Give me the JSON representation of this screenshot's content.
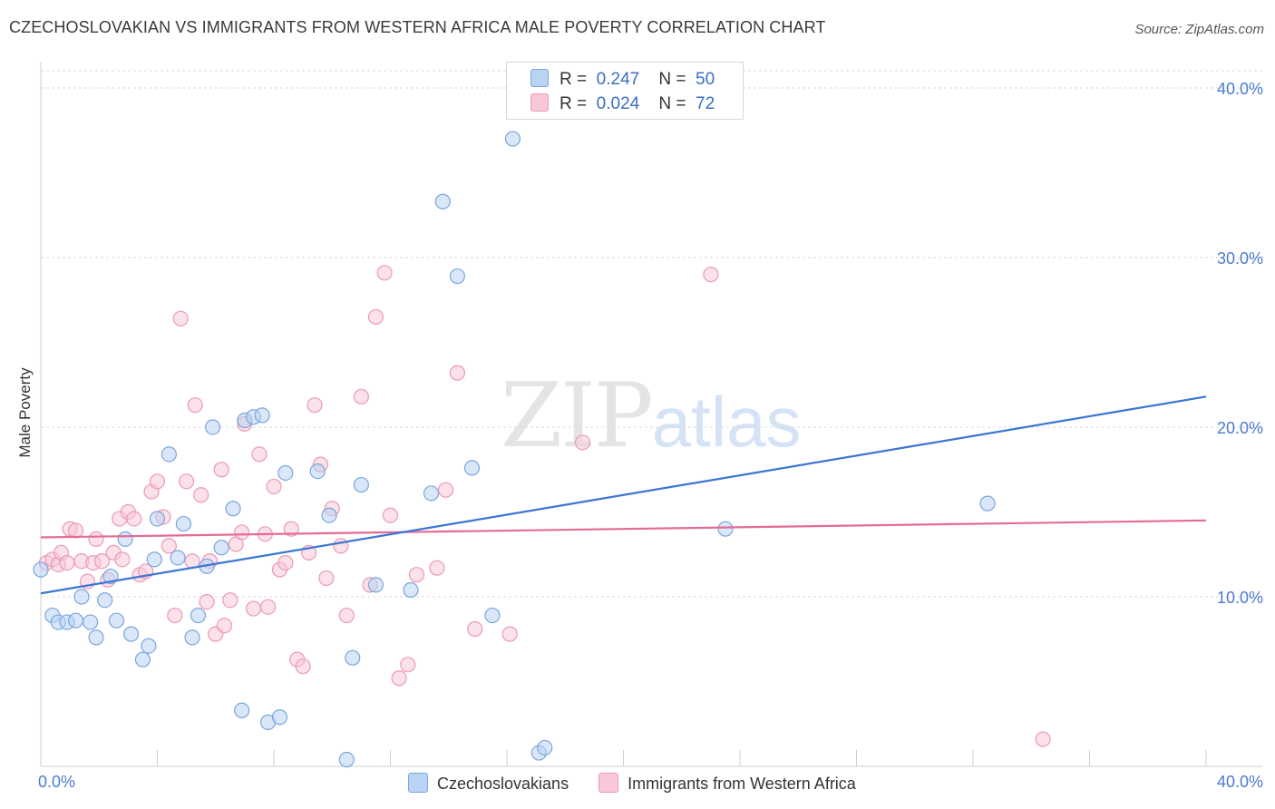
{
  "title": "CZECHOSLOVAKIAN VS IMMIGRANTS FROM WESTERN AFRICA MALE POVERTY CORRELATION CHART",
  "source": "Source: ZipAtlas.com",
  "watermark": {
    "zip": "ZIP",
    "atlas": "atlas"
  },
  "legend": {
    "rows": [
      {
        "r_label": "R =",
        "r_value": "0.247",
        "n_label": "N =",
        "n_value": "50"
      },
      {
        "r_label": "R =",
        "r_value": "0.024",
        "n_label": "N =",
        "n_value": "72"
      }
    ]
  },
  "colors": {
    "blue_fill": "#b9d3f3",
    "blue_stroke": "#7aa6de",
    "blue_line": "#3a76d2",
    "pink_fill": "#f8c8d7",
    "pink_stroke": "#eb9ab4",
    "pink_line": "#e36c95",
    "tick_text": "#4a7bd0",
    "grid": "#d9d9d9"
  },
  "chart_data": {
    "type": "scatter",
    "title": "CZECHOSLOVAKIAN VS IMMIGRANTS FROM WESTERN AFRICA MALE POVERTY CORRELATION CHART",
    "xlabel": "",
    "ylabel": "Male Poverty",
    "xlim": [
      0,
      40
    ],
    "ylim": [
      0,
      40.8
    ],
    "x_tick_labels": [
      "0.0%",
      "40.0%"
    ],
    "y_ticks": [
      10,
      20,
      30,
      40
    ],
    "y_tick_labels": [
      "10.0%",
      "20.0%",
      "30.0%",
      "40.0%"
    ],
    "grid": "horizontal dashed",
    "legend_position": "bottom",
    "series": [
      {
        "name": "Czechoslovakians",
        "color": "#b9d3f3",
        "trend": {
          "x": [
            0,
            40
          ],
          "y": [
            10.2,
            21.8
          ]
        },
        "points": [
          [
            0.0,
            11.6
          ],
          [
            0.4,
            8.9
          ],
          [
            0.6,
            8.5
          ],
          [
            0.9,
            8.5
          ],
          [
            1.2,
            8.6
          ],
          [
            1.4,
            10.0
          ],
          [
            1.7,
            8.5
          ],
          [
            1.9,
            7.6
          ],
          [
            2.2,
            9.8
          ],
          [
            2.4,
            11.2
          ],
          [
            2.6,
            8.6
          ],
          [
            2.9,
            13.4
          ],
          [
            3.1,
            7.8
          ],
          [
            3.5,
            6.3
          ],
          [
            3.7,
            7.1
          ],
          [
            3.9,
            12.2
          ],
          [
            4.0,
            14.6
          ],
          [
            4.4,
            18.4
          ],
          [
            4.7,
            12.3
          ],
          [
            4.9,
            14.3
          ],
          [
            5.2,
            7.6
          ],
          [
            5.4,
            8.9
          ],
          [
            5.7,
            11.8
          ],
          [
            5.9,
            20.0
          ],
          [
            6.2,
            12.9
          ],
          [
            6.6,
            15.2
          ],
          [
            6.9,
            3.3
          ],
          [
            7.0,
            20.4
          ],
          [
            7.3,
            20.6
          ],
          [
            7.6,
            20.7
          ],
          [
            7.8,
            2.6
          ],
          [
            8.2,
            2.9
          ],
          [
            8.4,
            17.3
          ],
          [
            9.5,
            17.4
          ],
          [
            9.9,
            14.8
          ],
          [
            10.5,
            0.4
          ],
          [
            10.7,
            6.4
          ],
          [
            11.0,
            16.6
          ],
          [
            11.5,
            10.7
          ],
          [
            12.7,
            10.4
          ],
          [
            13.4,
            16.1
          ],
          [
            13.8,
            33.3
          ],
          [
            14.3,
            28.9
          ],
          [
            14.8,
            17.6
          ],
          [
            15.5,
            8.9
          ],
          [
            16.2,
            37.0
          ],
          [
            17.1,
            0.8
          ],
          [
            17.3,
            1.1
          ],
          [
            23.5,
            14.0
          ],
          [
            32.5,
            15.5
          ]
        ]
      },
      {
        "name": "Immigrants from Western Africa",
        "color": "#f8c8d7",
        "trend": {
          "x": [
            0,
            40
          ],
          "y": [
            13.5,
            14.5
          ]
        },
        "points": [
          [
            0.2,
            12.0
          ],
          [
            0.4,
            12.2
          ],
          [
            0.6,
            11.9
          ],
          [
            0.7,
            12.6
          ],
          [
            0.9,
            12.0
          ],
          [
            1.0,
            14.0
          ],
          [
            1.2,
            13.9
          ],
          [
            1.4,
            12.1
          ],
          [
            1.6,
            10.9
          ],
          [
            1.8,
            12.0
          ],
          [
            1.9,
            13.4
          ],
          [
            2.1,
            12.1
          ],
          [
            2.3,
            11.0
          ],
          [
            2.5,
            12.6
          ],
          [
            2.7,
            14.6
          ],
          [
            2.8,
            12.2
          ],
          [
            3.0,
            15.0
          ],
          [
            3.2,
            14.6
          ],
          [
            3.4,
            11.3
          ],
          [
            3.6,
            11.5
          ],
          [
            3.8,
            16.2
          ],
          [
            4.0,
            16.8
          ],
          [
            4.2,
            14.7
          ],
          [
            4.4,
            13.0
          ],
          [
            4.6,
            8.9
          ],
          [
            4.8,
            26.4
          ],
          [
            5.0,
            16.8
          ],
          [
            5.2,
            12.1
          ],
          [
            5.3,
            21.3
          ],
          [
            5.5,
            16.0
          ],
          [
            5.7,
            9.7
          ],
          [
            5.8,
            12.1
          ],
          [
            6.0,
            7.8
          ],
          [
            6.2,
            17.5
          ],
          [
            6.3,
            8.3
          ],
          [
            6.5,
            9.8
          ],
          [
            6.7,
            13.1
          ],
          [
            6.9,
            13.8
          ],
          [
            7.0,
            20.2
          ],
          [
            7.3,
            9.3
          ],
          [
            7.5,
            18.4
          ],
          [
            7.7,
            13.7
          ],
          [
            7.8,
            9.4
          ],
          [
            8.0,
            16.5
          ],
          [
            8.2,
            11.6
          ],
          [
            8.4,
            12.0
          ],
          [
            8.6,
            14.0
          ],
          [
            8.8,
            6.3
          ],
          [
            9.0,
            5.9
          ],
          [
            9.2,
            12.6
          ],
          [
            9.4,
            21.3
          ],
          [
            9.6,
            17.8
          ],
          [
            9.8,
            11.1
          ],
          [
            10.0,
            15.2
          ],
          [
            10.3,
            13.0
          ],
          [
            10.5,
            8.9
          ],
          [
            11.0,
            21.8
          ],
          [
            11.3,
            10.7
          ],
          [
            11.5,
            26.5
          ],
          [
            11.8,
            29.1
          ],
          [
            12.0,
            14.8
          ],
          [
            12.3,
            5.2
          ],
          [
            12.6,
            6.0
          ],
          [
            12.9,
            11.3
          ],
          [
            13.6,
            11.7
          ],
          [
            13.9,
            16.3
          ],
          [
            14.3,
            23.2
          ],
          [
            14.9,
            8.1
          ],
          [
            16.1,
            7.8
          ],
          [
            18.6,
            19.1
          ],
          [
            23.0,
            29.0
          ],
          [
            34.4,
            1.6
          ]
        ]
      }
    ]
  }
}
